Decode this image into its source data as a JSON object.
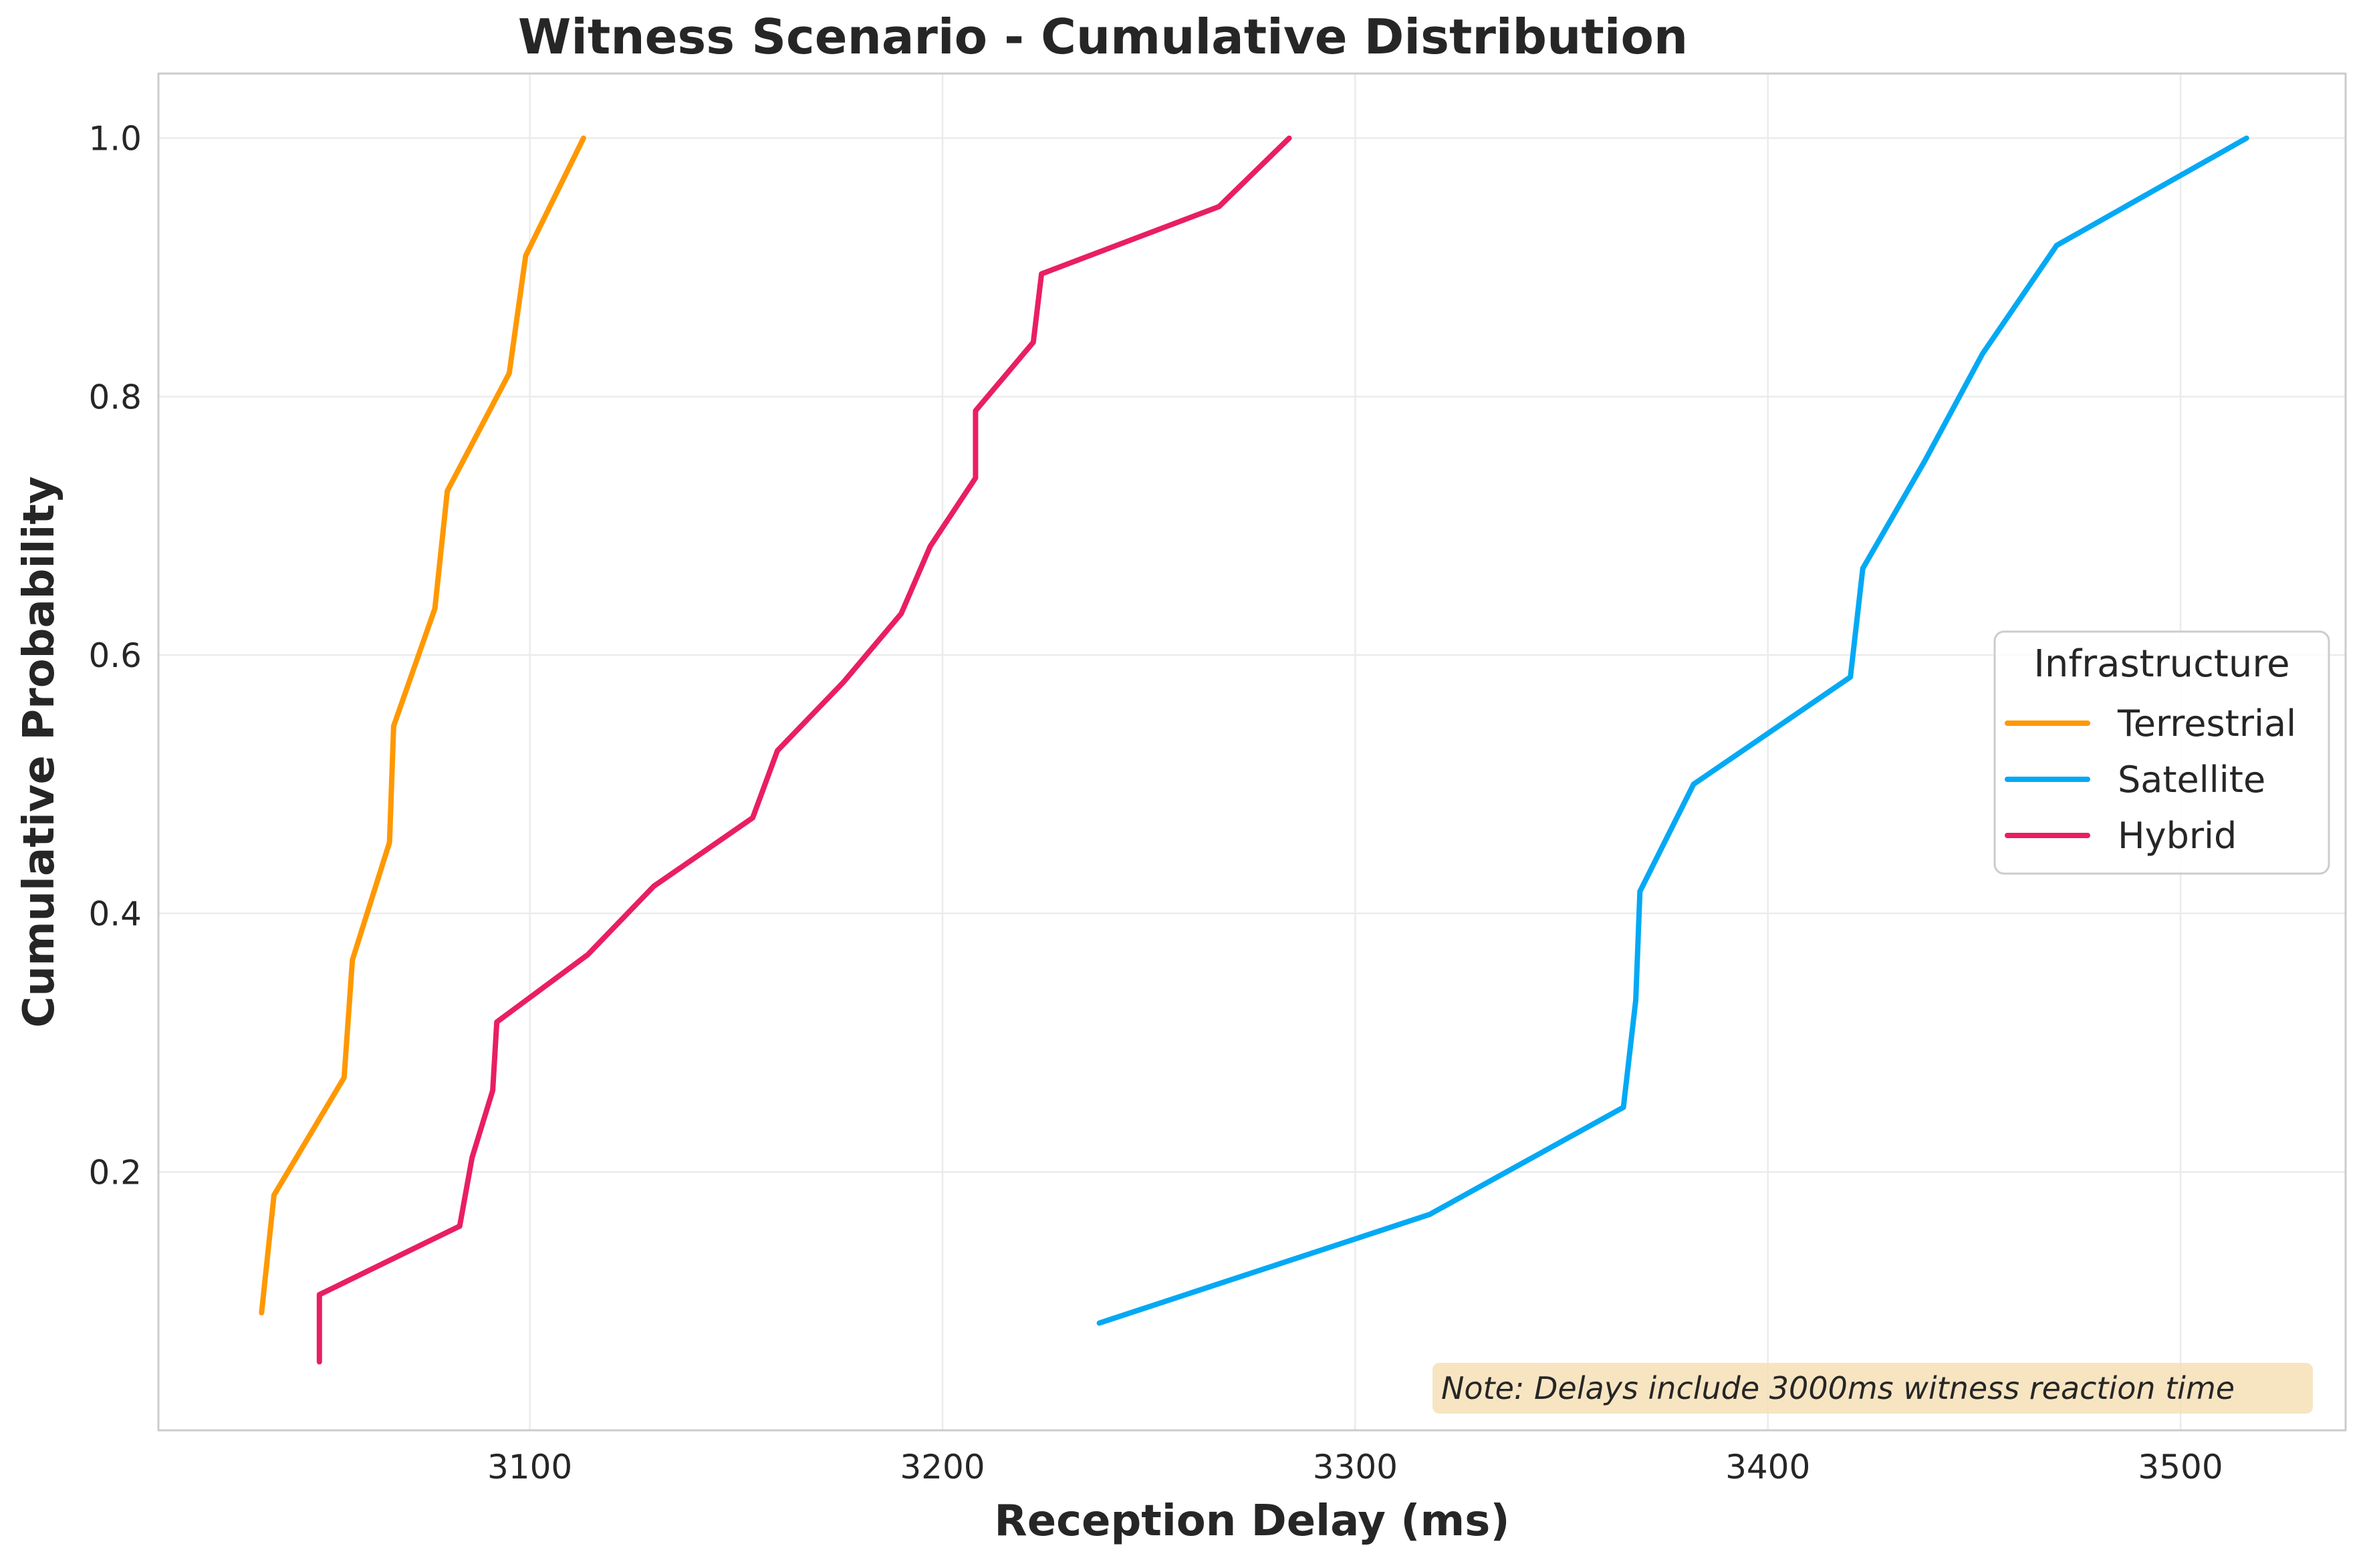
{
  "chart_data": {
    "type": "line",
    "title": "Witness Scenario - Cumulative Distribution",
    "xlabel": "Reception Delay (ms)",
    "ylabel": "Cumulative Probability",
    "xlim": [
      3010,
      3540
    ],
    "ylim": [
      0.0,
      1.05
    ],
    "x_ticks": [
      3100,
      3200,
      3300,
      3400,
      3500
    ],
    "y_ticks": [
      0.2,
      0.4,
      0.6,
      0.8,
      1.0
    ],
    "x_tick_labels": [
      "3100",
      "3200",
      "3300",
      "3400",
      "3500"
    ],
    "y_tick_labels": [
      "0.2",
      "0.4",
      "0.6",
      "0.8",
      "1.0"
    ],
    "grid": true,
    "legend": {
      "title": "Infrastructure",
      "placement": "center-right"
    },
    "annotation": "Note: Delays include 3000ms witness reaction time",
    "series": [
      {
        "name": "Terrestrial",
        "color": "#FF9800",
        "x": [
          3035,
          3038,
          3055,
          3057,
          3066,
          3067,
          3077,
          3080,
          3095,
          3099,
          3113
        ],
        "y": [
          0.091,
          0.182,
          0.273,
          0.364,
          0.455,
          0.545,
          0.636,
          0.727,
          0.818,
          0.909,
          1.0
        ]
      },
      {
        "name": "Satellite",
        "color": "#03A9F4",
        "x": [
          3238,
          3318,
          3365,
          3368,
          3369,
          3382,
          3420,
          3423,
          3438,
          3452,
          3470,
          3516
        ],
        "y": [
          0.083,
          0.167,
          0.25,
          0.333,
          0.417,
          0.5,
          0.583,
          0.667,
          0.75,
          0.833,
          0.917,
          1.0
        ]
      },
      {
        "name": "Hybrid",
        "color": "#E91E63",
        "x": [
          3049,
          3049,
          3083,
          3086,
          3091,
          3092,
          3114,
          3130,
          3154,
          3160,
          3176,
          3190,
          3197,
          3208,
          3208,
          3222,
          3224,
          3267,
          3284
        ],
        "y": [
          0.053,
          0.105,
          0.158,
          0.211,
          0.263,
          0.316,
          0.368,
          0.421,
          0.474,
          0.526,
          0.579,
          0.632,
          0.684,
          0.737,
          0.789,
          0.842,
          0.895,
          0.947,
          1.0
        ]
      }
    ]
  }
}
